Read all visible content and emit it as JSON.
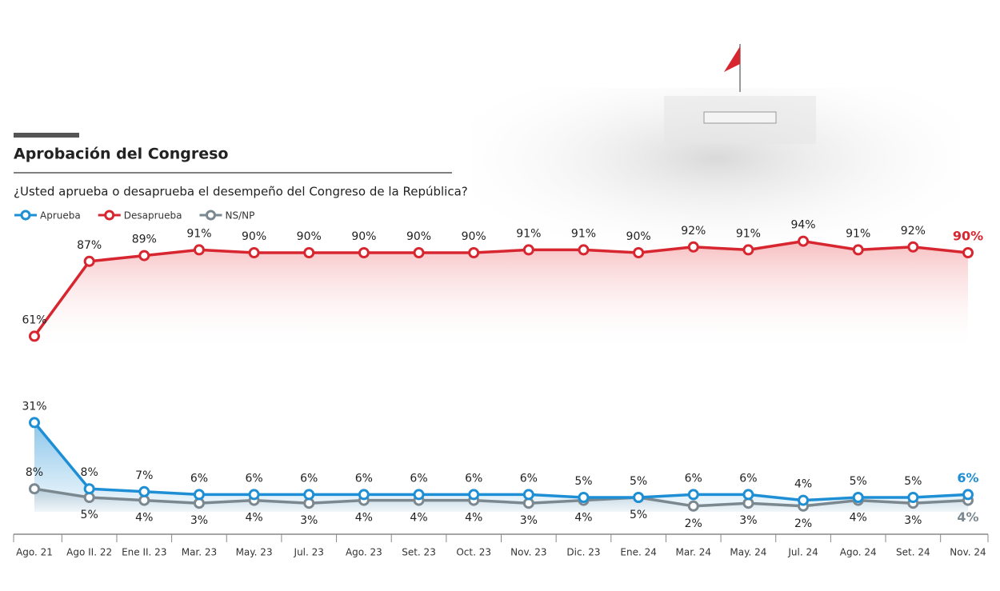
{
  "chart_data": {
    "type": "line",
    "title": "Aprobación del Congreso",
    "subtitle": "¿Usted aprueba o desaprueba el desempeño del Congreso de la República?",
    "categories": [
      "Ago. 21",
      "Ago II. 22",
      "Ene II. 23",
      "Mar. 23",
      "May. 23",
      "Jul. 23",
      "Ago. 23",
      "Set. 23",
      "Oct. 23",
      "Nov. 23",
      "Dic. 23",
      "Ene. 24",
      "Mar. 24",
      "May. 24",
      "Jul. 24",
      "Ago. 24",
      "Set. 24",
      "Nov. 24"
    ],
    "series": [
      {
        "name": "Aprueba",
        "color": "#1e8fd5",
        "values": [
          31,
          8,
          7,
          6,
          6,
          6,
          6,
          6,
          6,
          6,
          5,
          5,
          6,
          6,
          4,
          5,
          5,
          6
        ],
        "value_labels": [
          "31%",
          "8%",
          "7%",
          "6%",
          "6%",
          "6%",
          "6%",
          "6%",
          "6%",
          "6%",
          "5%",
          "5%",
          "6%",
          "6%",
          "4%",
          "5%",
          "5%",
          "6%"
        ]
      },
      {
        "name": "Desaprueba",
        "color": "#d7262f",
        "values": [
          61,
          87,
          89,
          91,
          90,
          90,
          90,
          90,
          90,
          91,
          91,
          90,
          92,
          91,
          94,
          91,
          92,
          90
        ],
        "value_labels": [
          "61%",
          "87%",
          "89%",
          "91%",
          "90%",
          "90%",
          "90%",
          "90%",
          "90%",
          "91%",
          "91%",
          "90%",
          "92%",
          "91%",
          "94%",
          "91%",
          "92%",
          "90%"
        ]
      },
      {
        "name": "NS/NP",
        "color": "#7b8890",
        "values": [
          8,
          5,
          4,
          3,
          4,
          3,
          4,
          4,
          4,
          3,
          4,
          5,
          2,
          3,
          2,
          4,
          3,
          4
        ],
        "value_labels": [
          "8%",
          "5%",
          "4%",
          "3%",
          "4%",
          "3%",
          "4%",
          "4%",
          "4%",
          "3%",
          "4%",
          "5%",
          "2%",
          "3%",
          "2%",
          "4%",
          "3%",
          "4%"
        ]
      }
    ]
  }
}
